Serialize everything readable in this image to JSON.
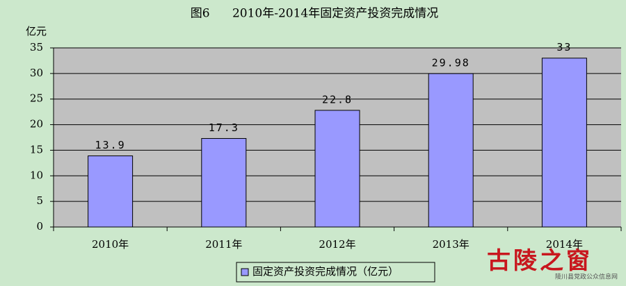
{
  "chart_data": {
    "type": "bar",
    "title": "图6      2010年-2014年固定资产投资完成情况",
    "y_label": "亿元",
    "categories": [
      "2010年",
      "2011年",
      "2012年",
      "2013年",
      "2014年"
    ],
    "series": [
      {
        "name": "固定资产投资完成情况（亿元）",
        "color": "#9999ff",
        "values": [
          13.9,
          17.3,
          22.8,
          29.98,
          33
        ]
      }
    ],
    "ylim": [
      0,
      35
    ],
    "yticks": [
      0,
      5,
      10,
      15,
      20,
      25,
      30,
      35
    ],
    "grid": true,
    "legend": "bottom"
  },
  "watermark": {
    "logo": "古陵之窗",
    "site": "陵川县党政公众信息网"
  }
}
